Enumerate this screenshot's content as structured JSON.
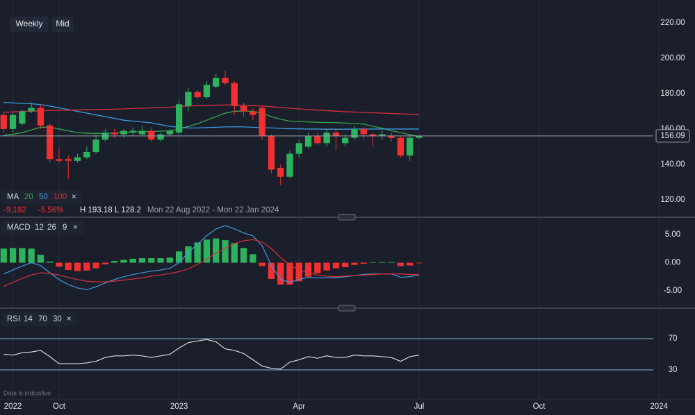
{
  "toolbar": {
    "interval": "Weekly",
    "price_type": "Mid"
  },
  "footer": "Data is indicative",
  "chart_data": [
    {
      "type": "candlestick",
      "indicator": "MA",
      "legend_close": "×",
      "stats": [
        "-9.192",
        "-5.56%",
        "H 193.18",
        "L 128.2"
      ],
      "range_label": "Mon 22 Aug 2022 - Mon 22 Jan 2024",
      "up_color": "#2db35d",
      "down_color": "#f23030",
      "x": [
        -6,
        -5,
        -4,
        -3,
        -2,
        -1,
        0,
        1,
        2,
        3,
        4,
        5,
        6,
        7,
        8,
        9,
        10,
        11,
        12,
        13,
        14,
        15,
        16,
        17,
        18,
        19,
        20,
        21,
        22,
        23,
        24,
        25,
        26,
        27,
        28,
        29,
        30,
        31,
        32,
        33,
        34,
        35,
        36,
        37,
        38,
        39
      ],
      "open": [
        168,
        160,
        163,
        170,
        172,
        162,
        143,
        143,
        142,
        144,
        147,
        154,
        158,
        157,
        158,
        157,
        159,
        154,
        157,
        158,
        173,
        181,
        178,
        184,
        189,
        186,
        173,
        170,
        172,
        156,
        138,
        133,
        146,
        150,
        156,
        152,
        158,
        152,
        155,
        160,
        157,
        156,
        156,
        155,
        145,
        155
      ],
      "high": [
        170,
        169,
        171,
        175,
        174,
        163,
        149,
        145,
        146,
        150,
        157,
        160,
        160,
        160,
        161,
        162,
        161,
        158,
        160,
        176,
        183,
        182,
        187,
        191,
        193.18,
        187,
        175,
        172,
        173,
        157,
        140,
        148,
        154,
        158,
        158,
        160,
        160,
        157,
        162,
        161,
        158,
        159,
        158,
        156,
        157,
        156.5
      ],
      "low": [
        158,
        158,
        162,
        169,
        160,
        141,
        141,
        132,
        141,
        143,
        146,
        153,
        155,
        155,
        156,
        156,
        153,
        153,
        156,
        157,
        170,
        177,
        177,
        183,
        185,
        168,
        167,
        165,
        154,
        135,
        128.2,
        132,
        144,
        149,
        151,
        150,
        148,
        150,
        154,
        154,
        150,
        154,
        153,
        144,
        142,
        154.5
      ],
      "close": [
        160,
        168,
        170,
        172,
        162,
        143,
        142,
        142,
        144,
        147,
        154,
        158,
        157,
        159,
        159,
        159,
        154,
        157,
        159,
        174,
        181,
        178,
        185,
        189,
        186,
        173,
        170,
        168,
        156,
        137,
        133,
        146,
        152,
        156,
        152,
        158,
        156,
        155,
        160,
        157,
        156,
        157,
        155,
        145,
        155,
        156.09
      ],
      "series": [
        {
          "name": "20",
          "color": "#2fa84f",
          "values": [
            156.5,
            157,
            158,
            159.5,
            161,
            161,
            160,
            159,
            158,
            157.6,
            157.5,
            157.6,
            157.8,
            158,
            158.3,
            158.5,
            158.6,
            158.8,
            159,
            160,
            161.5,
            163,
            165,
            167,
            169,
            170,
            170.2,
            170,
            169,
            167,
            165.5,
            164.5,
            164.3,
            164,
            163.8,
            163.7,
            163.6,
            163.4,
            163.2,
            162.8,
            161.5,
            160.5,
            159,
            158,
            156.8,
            155.8
          ]
        },
        {
          "name": "50",
          "color": "#3d9be0",
          "values": [
            175,
            174.8,
            174.5,
            174.3,
            173.8,
            173,
            172,
            171,
            170,
            169,
            168,
            167,
            166,
            165,
            164.5,
            164,
            163.5,
            162.5,
            161.5,
            161,
            160.6,
            160.6,
            160.8,
            161,
            161.2,
            161.3,
            161.2,
            161,
            160.8,
            160.6,
            160.4,
            160.2,
            160.1,
            160,
            160,
            159.9,
            159.9,
            159.9,
            160,
            160,
            160,
            160,
            160,
            160,
            160,
            160
          ]
        },
        {
          "name": "100",
          "color": "#d9303a",
          "values": [
            169.5,
            169.7,
            169.9,
            170.1,
            170.3,
            170.5,
            170.6,
            170.7,
            170.8,
            170.9,
            171,
            171.1,
            171.2,
            171.4,
            171.6,
            171.8,
            172,
            172.2,
            172.4,
            172.7,
            173,
            173.2,
            173.4,
            173.5,
            173.6,
            173.6,
            173.5,
            173.3,
            173,
            172.6,
            172.2,
            171.8,
            171.4,
            171,
            170.7,
            170.4,
            170.1,
            169.8,
            169.6,
            169.4,
            169.2,
            169,
            168.8,
            168.6,
            168.4,
            168.2
          ]
        }
      ],
      "last_price": 156.09,
      "ylim": [
        110.5,
        233
      ],
      "yticks": [
        {
          "value": 120,
          "label": "120.00"
        },
        {
          "value": 140,
          "label": "140.00"
        },
        {
          "value": 160,
          "label": "160.00"
        },
        {
          "value": 180,
          "label": "180.00"
        },
        {
          "value": 200,
          "label": "200.00"
        },
        {
          "value": 220,
          "label": "220.00"
        }
      ],
      "xlim": [
        -6.4,
        68.9
      ],
      "xticks": [
        {
          "value": -5,
          "label": "2022"
        },
        {
          "value": 0,
          "label": "Oct"
        },
        {
          "value": 13,
          "label": "2023"
        },
        {
          "value": 26,
          "label": "Apr"
        },
        {
          "value": 39,
          "label": "Jul"
        },
        {
          "value": 52,
          "label": "Oct"
        },
        {
          "value": 65,
          "label": "2024"
        }
      ],
      "grid": true
    },
    {
      "type": "macd",
      "indicator": "MACD",
      "params": [
        "12",
        "26",
        "9"
      ],
      "legend_close": "×",
      "x": [
        -6,
        -5,
        -4,
        -3,
        -2,
        -1,
        0,
        1,
        2,
        3,
        4,
        5,
        6,
        7,
        8,
        9,
        10,
        11,
        12,
        13,
        14,
        15,
        16,
        17,
        18,
        19,
        20,
        21,
        22,
        23,
        24,
        25,
        26,
        27,
        28,
        29,
        30,
        31,
        32,
        33,
        34,
        35,
        36,
        37,
        38,
        39
      ],
      "histogram": {
        "up_color": "#2db35d",
        "down_color": "#f23030",
        "values": [
          2.5,
          2.6,
          2.6,
          2.5,
          1.4,
          0.2,
          -0.7,
          -1.3,
          -1.5,
          -1.4,
          -1.0,
          -0.3,
          0.3,
          0.5,
          0.7,
          0.8,
          0.8,
          0.8,
          0.9,
          2.0,
          2.9,
          3.6,
          4.1,
          4.3,
          4.0,
          3.5,
          2.6,
          1.5,
          -0.6,
          -2.9,
          -3.9,
          -3.9,
          -3.3,
          -2.5,
          -1.9,
          -1.4,
          -1.0,
          -0.8,
          -0.4,
          -0.2,
          0.1,
          0.1,
          0.1,
          -0.6,
          -0.5,
          -0.1
        ]
      },
      "series": [
        {
          "color": "#3d9be0",
          "values": [
            -2,
            -1.3,
            -0.6,
            0,
            -0.5,
            -1.8,
            -3,
            -3.9,
            -4.5,
            -4.8,
            -4.3,
            -3.6,
            -3,
            -2.5,
            -2.1,
            -1.8,
            -1.5,
            -1.3,
            -1,
            0,
            1.8,
            3.3,
            4.8,
            6,
            6.6,
            6,
            5.3,
            4.8,
            3,
            -0.5,
            -3,
            -3.5,
            -3,
            -2.6,
            -2.7,
            -2.7,
            -2.7,
            -2.5,
            -2.3,
            -2.1,
            -2,
            -2,
            -2,
            -2.6,
            -2.5,
            -2.2
          ]
        },
        {
          "color": "#d9303a",
          "values": [
            -4.2,
            -3.5,
            -2.8,
            -2.2,
            -1.8,
            -1.9,
            -2.2,
            -2.6,
            -3,
            -3.3,
            -3.4,
            -3.4,
            -3.3,
            -3.1,
            -2.9,
            -2.7,
            -2.4,
            -2.2,
            -1.9,
            -1.6,
            -1.1,
            -0.3,
            0.6,
            1.7,
            2.6,
            3.4,
            3.9,
            4.1,
            3.7,
            2.5,
            0.9,
            -0.4,
            -1.3,
            -1.8,
            -2.2,
            -2.4,
            -2.5,
            -2.4,
            -2.3,
            -2.2,
            -2.1,
            -2,
            -2,
            -2,
            -2.1,
            -2.1
          ]
        }
      ],
      "ylim": [
        -7.96,
        7.47
      ],
      "yticks": [
        {
          "value": -5,
          "label": "-5.00"
        },
        {
          "value": 0,
          "label": "0.00"
        },
        {
          "value": 5,
          "label": "5.00"
        }
      ],
      "xlim": [
        -6.4,
        68.9
      ]
    },
    {
      "type": "rsi",
      "indicator": "RSI",
      "params": [
        "14",
        "70",
        "30"
      ],
      "legend_close": "×",
      "x": [
        -6,
        -5,
        -4,
        -3,
        -2,
        -1,
        0,
        1,
        2,
        3,
        4,
        5,
        6,
        7,
        8,
        9,
        10,
        11,
        12,
        13,
        14,
        15,
        16,
        17,
        18,
        19,
        20,
        21,
        22,
        23,
        24,
        25,
        26,
        27,
        28,
        29,
        30,
        31,
        32,
        33,
        34,
        35,
        36,
        37,
        38,
        39
      ],
      "color": "#d8dade",
      "values": [
        50,
        49,
        52,
        53,
        55,
        47,
        38,
        38,
        38,
        39,
        41,
        46,
        48,
        48,
        49,
        48,
        46,
        48,
        50,
        58,
        65,
        67,
        69,
        66,
        57,
        55,
        51,
        43,
        35,
        32,
        31,
        40,
        43,
        47,
        45,
        48,
        46,
        46,
        49,
        48,
        48,
        47,
        46,
        41,
        47,
        49
      ],
      "band_color": "#7fb3d9",
      "ylim": [
        -7.3,
        105.6
      ],
      "yticks": [
        30,
        70
      ],
      "xlim": [
        -6.4,
        68.9
      ]
    }
  ]
}
